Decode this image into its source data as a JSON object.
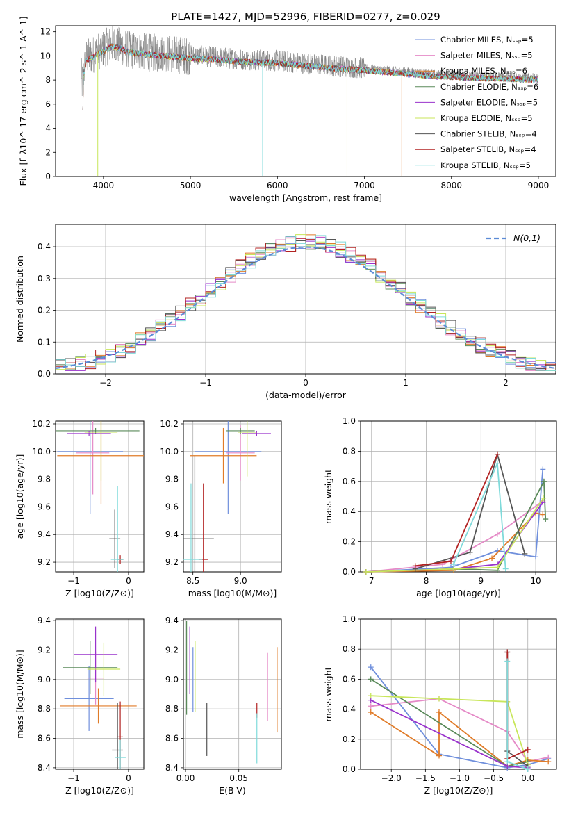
{
  "figure": {
    "title": "PLATE=1427, MJD=52996, FIBERID=0277, z=0.029"
  },
  "colors": {
    "grid": "#b0b0b0",
    "spec": "#808080",
    "normal": "#5b8bd6",
    "series": {
      "chabrier_miles": "#6f8fdc",
      "salpeter_miles": "#e58ac7",
      "kroupa_miles": "#e07b28",
      "chabrier_elodie": "#5a8a5a",
      "salpeter_elodie": "#9932cc",
      "kroupa_elodie": "#c8e65a",
      "chabrier_stelib": "#555555",
      "salpeter_stelib": "#b22222",
      "kroupa_stelib": "#7fdada"
    }
  },
  "chart_data": [
    {
      "id": "spectrum",
      "type": "line",
      "xlabel": "wavelength [Angstrom, rest frame]",
      "ylabel": "Flux [f_λ10^-17 erg cm^-2 s^-1 A^-1]",
      "xlim": [
        3450,
        9200
      ],
      "ylim": [
        0,
        12.5
      ],
      "xticks": [
        4000,
        5000,
        6000,
        7000,
        8000,
        9000
      ],
      "yticks": [
        0,
        2,
        4,
        6,
        8,
        10,
        12
      ],
      "legend_position": "top-right",
      "observed_envelope": {
        "x": [
          3750,
          3800,
          3900,
          4000,
          4100,
          4200,
          4300,
          4500,
          4700,
          5000,
          5300,
          5600,
          6000,
          6300,
          6600,
          7000,
          7300,
          7500,
          7800,
          8200,
          8600,
          9000
        ],
        "y": [
          7.5,
          9.8,
          10.2,
          10.6,
          11.0,
          10.8,
          10.5,
          10.3,
          10.2,
          10.0,
          9.9,
          9.7,
          9.6,
          9.4,
          9.2,
          9.0,
          8.8,
          8.7,
          8.5,
          8.4,
          8.3,
          8.2
        ]
      },
      "series": [
        {
          "name": "Chabrier MILES, N_SSP=5",
          "key": "chabrier_miles"
        },
        {
          "name": "Salpeter MILES, N_SSP=5",
          "key": "salpeter_miles"
        },
        {
          "name": "Kroupa MILES, N_SSP=6",
          "key": "kroupa_miles"
        },
        {
          "name": "Chabrier ELODIE, N_SSP=6",
          "key": "chabrier_elodie"
        },
        {
          "name": "Salpeter ELODIE, N_SSP=5",
          "key": "salpeter_elodie"
        },
        {
          "name": "Kroupa ELODIE, N_SSP=5",
          "key": "kroupa_elodie"
        },
        {
          "name": "Chabrier STELIB, N_SSP=4",
          "key": "chabrier_stelib"
        },
        {
          "name": "Salpeter STELIB, N_SSP=4",
          "key": "salpeter_stelib"
        },
        {
          "name": "Kroupa STELIB, N_SSP=5",
          "key": "kroupa_stelib"
        }
      ]
    },
    {
      "id": "residuals",
      "type": "line",
      "xlabel": "(data-model)/error",
      "ylabel": "Normed distribution",
      "xlim": [
        -2.5,
        2.5
      ],
      "ylim": [
        0,
        0.47
      ],
      "xticks": [
        -2,
        -1,
        0,
        1,
        2
      ],
      "yticks": [
        0.0,
        0.1,
        0.2,
        0.3,
        0.4
      ],
      "grid": true,
      "legend": "N(0,1)",
      "legend_position": "top-right",
      "reference": "standard normal distribution N(0,1)"
    },
    {
      "id": "age_vs_Z",
      "type": "scatter",
      "xlabel": "Z [log10(Z/Z⊙)]",
      "ylabel": "age [log10(age/yr)]",
      "xlim": [
        -1.33,
        0.28
      ],
      "ylim": [
        9.13,
        10.22
      ],
      "xticks": [
        -1,
        -0.5,
        0
      ],
      "xticklabels": [
        "−1",
        "",
        "0"
      ],
      "yticks": [
        9.2,
        9.4,
        9.6,
        9.8,
        10.0,
        10.2
      ],
      "points": [
        {
          "key": "chabrier_miles",
          "x": -0.7,
          "y": 10.0,
          "xerr": 0.6,
          "yerr": 0.45
        },
        {
          "key": "salpeter_miles",
          "x": -0.65,
          "y": 9.99,
          "xerr": 0.3,
          "yerr": 0.3
        },
        {
          "key": "kroupa_miles",
          "x": -0.5,
          "y": 9.97,
          "xerr": 0.8,
          "yerr": 0.35
        },
        {
          "key": "chabrier_elodie",
          "x": -0.6,
          "y": 10.15,
          "xerr": 0.8,
          "yerr": 0.02
        },
        {
          "key": "salpeter_elodie",
          "x": -0.72,
          "y": 10.13,
          "xerr": 0.4,
          "yerr": 0.02
        },
        {
          "key": "kroupa_elodie",
          "x": -0.5,
          "y": 10.14,
          "xerr": 0.3,
          "yerr": 0.35
        },
        {
          "key": "chabrier_stelib",
          "x": -0.25,
          "y": 9.37,
          "xerr": 0.1,
          "yerr": 0.21
        },
        {
          "key": "salpeter_stelib",
          "x": -0.15,
          "y": 9.22,
          "xerr": 0.05,
          "yerr": 0.03
        },
        {
          "key": "kroupa_stelib",
          "x": -0.2,
          "y": 9.22,
          "xerr": 0.12,
          "yerr": 0.53
        }
      ]
    },
    {
      "id": "age_vs_mass",
      "type": "scatter",
      "xlabel": "mass [log10(M/M⊙)]",
      "ylabel": "",
      "xlim": [
        8.4,
        9.43
      ],
      "ylim": [
        9.13,
        10.22
      ],
      "xticks": [
        8.5,
        9.0
      ],
      "xticklabels": [
        "8.5",
        "9.0"
      ],
      "yticks": [
        9.2,
        9.4,
        9.6,
        9.8,
        10.0,
        10.2
      ],
      "points": [
        {
          "key": "chabrier_miles",
          "x": 8.87,
          "y": 10.0,
          "xerr": 0.35,
          "yerr": 0.45
        },
        {
          "key": "salpeter_miles",
          "x": 9.0,
          "y": 9.99,
          "xerr": 0.15,
          "yerr": 0.2
        },
        {
          "key": "kroupa_miles",
          "x": 8.82,
          "y": 9.97,
          "xerr": 0.35,
          "yerr": 0.2
        },
        {
          "key": "chabrier_elodie",
          "x": 9.0,
          "y": 10.15,
          "xerr": 0.15,
          "yerr": 0.02
        },
        {
          "key": "salpeter_elodie",
          "x": 9.17,
          "y": 10.13,
          "xerr": 0.15,
          "yerr": 0.02
        },
        {
          "key": "kroupa_elodie",
          "x": 9.07,
          "y": 10.14,
          "xerr": 0.1,
          "yerr": 0.32
        },
        {
          "key": "chabrier_stelib",
          "x": 8.52,
          "y": 9.37,
          "xerr": 0.2,
          "yerr": 0.6
        },
        {
          "key": "salpeter_stelib",
          "x": 8.61,
          "y": 9.22,
          "xerr": 0.05,
          "yerr": 0.55
        },
        {
          "key": "kroupa_stelib",
          "x": 8.48,
          "y": 9.22,
          "xerr": 0.12,
          "yerr": 0.55
        }
      ]
    },
    {
      "id": "mass_weight_vs_age",
      "type": "line",
      "xlabel": "age [log10(age/yr)]",
      "ylabel": "mass weight",
      "xlim": [
        6.8,
        10.38
      ],
      "ylim": [
        0,
        1.0
      ],
      "xticks": [
        7,
        8,
        9,
        10
      ],
      "yticks": [
        0.0,
        0.2,
        0.4,
        0.6,
        0.8,
        1.0
      ],
      "grid": true,
      "series": [
        {
          "key": "chabrier_miles",
          "x": [
            6.9,
            8.45,
            9.3,
            10.0,
            10.13
          ],
          "y": [
            0.0,
            0.03,
            0.14,
            0.1,
            0.68
          ]
        },
        {
          "key": "salpeter_miles",
          "x": [
            6.9,
            8.3,
            9.3,
            10.13
          ],
          "y": [
            0.0,
            0.05,
            0.25,
            0.47
          ]
        },
        {
          "key": "kroupa_miles",
          "x": [
            6.9,
            8.5,
            9.2,
            10.0,
            10.13
          ],
          "y": [
            0.0,
            0.01,
            0.09,
            0.39,
            0.38
          ]
        },
        {
          "key": "chabrier_elodie",
          "x": [
            6.9,
            8.5,
            9.3,
            10.15,
            10.18
          ],
          "y": [
            0.0,
            0.02,
            0.01,
            0.6,
            0.35
          ]
        },
        {
          "key": "salpeter_elodie",
          "x": [
            6.9,
            8.5,
            9.3,
            10.13
          ],
          "y": [
            0.0,
            0.02,
            0.05,
            0.46
          ]
        },
        {
          "key": "kroupa_elodie",
          "x": [
            6.9,
            8.5,
            9.3,
            10.14
          ],
          "y": [
            0.0,
            0.02,
            0.03,
            0.49
          ]
        },
        {
          "key": "chabrier_stelib",
          "x": [
            7.8,
            8.8,
            9.3,
            9.8
          ],
          "y": [
            0.02,
            0.13,
            0.78,
            0.12
          ]
        },
        {
          "key": "salpeter_stelib",
          "x": [
            7.8,
            8.45,
            9.3
          ],
          "y": [
            0.04,
            0.07,
            0.78
          ]
        },
        {
          "key": "kroupa_stelib",
          "x": [
            8.5,
            9.3,
            9.45
          ],
          "y": [
            0.05,
            0.72,
            0.02
          ]
        }
      ]
    },
    {
      "id": "mass_vs_Z",
      "type": "scatter",
      "xlabel": "Z [log10(Z/Z⊙)]",
      "ylabel": "mass [log10(M/M⊙)]",
      "xlim": [
        -1.33,
        0.28
      ],
      "ylim": [
        8.39,
        9.41
      ],
      "xticks": [
        -1,
        -0.5,
        0
      ],
      "xticklabels": [
        "−1",
        "",
        "0"
      ],
      "yticks": [
        8.4,
        8.6,
        8.8,
        9.0,
        9.2,
        9.4
      ],
      "points": [
        {
          "key": "chabrier_miles",
          "x": -0.72,
          "y": 8.87,
          "xerr": 0.45,
          "yerr": 0.22
        },
        {
          "key": "salpeter_miles",
          "x": -0.6,
          "y": 9.01,
          "xerr": 0.15,
          "yerr": 0.18
        },
        {
          "key": "kroupa_miles",
          "x": -0.55,
          "y": 8.82,
          "xerr": 0.7,
          "yerr": 0.12
        },
        {
          "key": "chabrier_elodie",
          "x": -0.7,
          "y": 9.08,
          "xerr": 0.5,
          "yerr": 0.18
        },
        {
          "key": "salpeter_elodie",
          "x": -0.6,
          "y": 9.17,
          "xerr": 0.4,
          "yerr": 0.19
        },
        {
          "key": "kroupa_elodie",
          "x": -0.45,
          "y": 9.07,
          "xerr": 0.3,
          "yerr": 0.18
        },
        {
          "key": "chabrier_stelib",
          "x": -0.2,
          "y": 8.52,
          "xerr": 0.1,
          "yerr": 0.32
        },
        {
          "key": "salpeter_stelib",
          "x": -0.15,
          "y": 8.61,
          "xerr": 0.05,
          "yerr": 0.24
        },
        {
          "key": "kroupa_stelib",
          "x": -0.15,
          "y": 8.47,
          "xerr": 0.1,
          "yerr": 0.12
        }
      ]
    },
    {
      "id": "mass_vs_ebv",
      "type": "scatter",
      "xlabel": "E(B-V)",
      "ylabel": "",
      "xlim": [
        -0.002,
        0.09
      ],
      "ylim": [
        8.39,
        9.41
      ],
      "xticks": [
        0.0,
        0.05
      ],
      "xticklabels": [
        "0.00",
        "0.05"
      ],
      "yticks": [
        8.4,
        8.6,
        8.8,
        9.0,
        9.2,
        9.4
      ],
      "points": [
        {
          "key": "chabrier_elodie",
          "x": 0.001,
          "y": 9.08,
          "yerr": 0.32
        },
        {
          "key": "salpeter_elodie",
          "x": 0.004,
          "y": 9.13,
          "yerr": 0.23
        },
        {
          "key": "kroupa_elodie",
          "x": 0.009,
          "y": 9.02,
          "yerr": 0.24
        },
        {
          "key": "chabrier_miles",
          "x": 0.007,
          "y": 9.0,
          "yerr": 0.22
        },
        {
          "key": "chabrier_stelib",
          "x": 0.02,
          "y": 8.66,
          "yerr": 0.18
        },
        {
          "key": "salpeter_stelib",
          "x": 0.067,
          "y": 8.79,
          "yerr": 0.05
        },
        {
          "key": "kroupa_stelib",
          "x": 0.067,
          "y": 8.6,
          "yerr": 0.17
        },
        {
          "key": "salpeter_miles",
          "x": 0.077,
          "y": 8.95,
          "yerr": 0.23
        },
        {
          "key": "kroupa_miles",
          "x": 0.086,
          "y": 8.93,
          "yerr": 0.29
        }
      ]
    },
    {
      "id": "mass_weight_vs_Z",
      "type": "line",
      "xlabel": "Z [log10(Z/Z⊙)]",
      "ylabel": "mass weight",
      "xlim": [
        -2.45,
        0.42
      ],
      "ylim": [
        0,
        1.0
      ],
      "xticks": [
        -2.0,
        -1.5,
        -1.0,
        -0.5,
        0.0
      ],
      "yticks": [
        0.0,
        0.2,
        0.4,
        0.6,
        0.8,
        1.0
      ],
      "grid": true,
      "series": [
        {
          "key": "chabrier_miles",
          "x": [
            -2.3,
            -1.3,
            -0.3,
            0.0,
            0.3
          ],
          "y": [
            0.68,
            0.1,
            0.01,
            0.03,
            0.07
          ]
        },
        {
          "key": "salpeter_miles",
          "x": [
            -2.3,
            -1.3,
            -0.3,
            0.0,
            0.3
          ],
          "y": [
            0.42,
            0.47,
            0.25,
            0.05,
            0.08
          ]
        },
        {
          "key": "kroupa_miles",
          "x": [
            -2.3,
            -1.3,
            -1.3,
            -0.3,
            0.0,
            0.3
          ],
          "y": [
            0.38,
            0.09,
            0.38,
            0.02,
            0.06,
            0.05
          ]
        },
        {
          "key": "chabrier_elodie",
          "x": [
            -2.3,
            -0.3,
            0.0
          ],
          "y": [
            0.6,
            0.02,
            0.05
          ]
        },
        {
          "key": "salpeter_elodie",
          "x": [
            -2.3,
            -0.3,
            0.0
          ],
          "y": [
            0.46,
            0.02,
            0.01
          ]
        },
        {
          "key": "kroupa_elodie",
          "x": [
            -2.3,
            -1.3,
            -0.3,
            0.0
          ],
          "y": [
            0.49,
            0.47,
            0.45,
            0.03
          ]
        },
        {
          "key": "chabrier_stelib",
          "x": [
            -0.3,
            -0.3,
            0.0
          ],
          "y": [
            0.78,
            0.12,
            0.02
          ]
        },
        {
          "key": "salpeter_stelib",
          "x": [
            -0.3,
            -0.3,
            0.0
          ],
          "y": [
            0.78,
            0.07,
            0.13
          ]
        },
        {
          "key": "kroupa_stelib",
          "x": [
            -0.3,
            -0.3,
            0.0
          ],
          "y": [
            0.72,
            0.05,
            0.0
          ]
        }
      ]
    }
  ]
}
